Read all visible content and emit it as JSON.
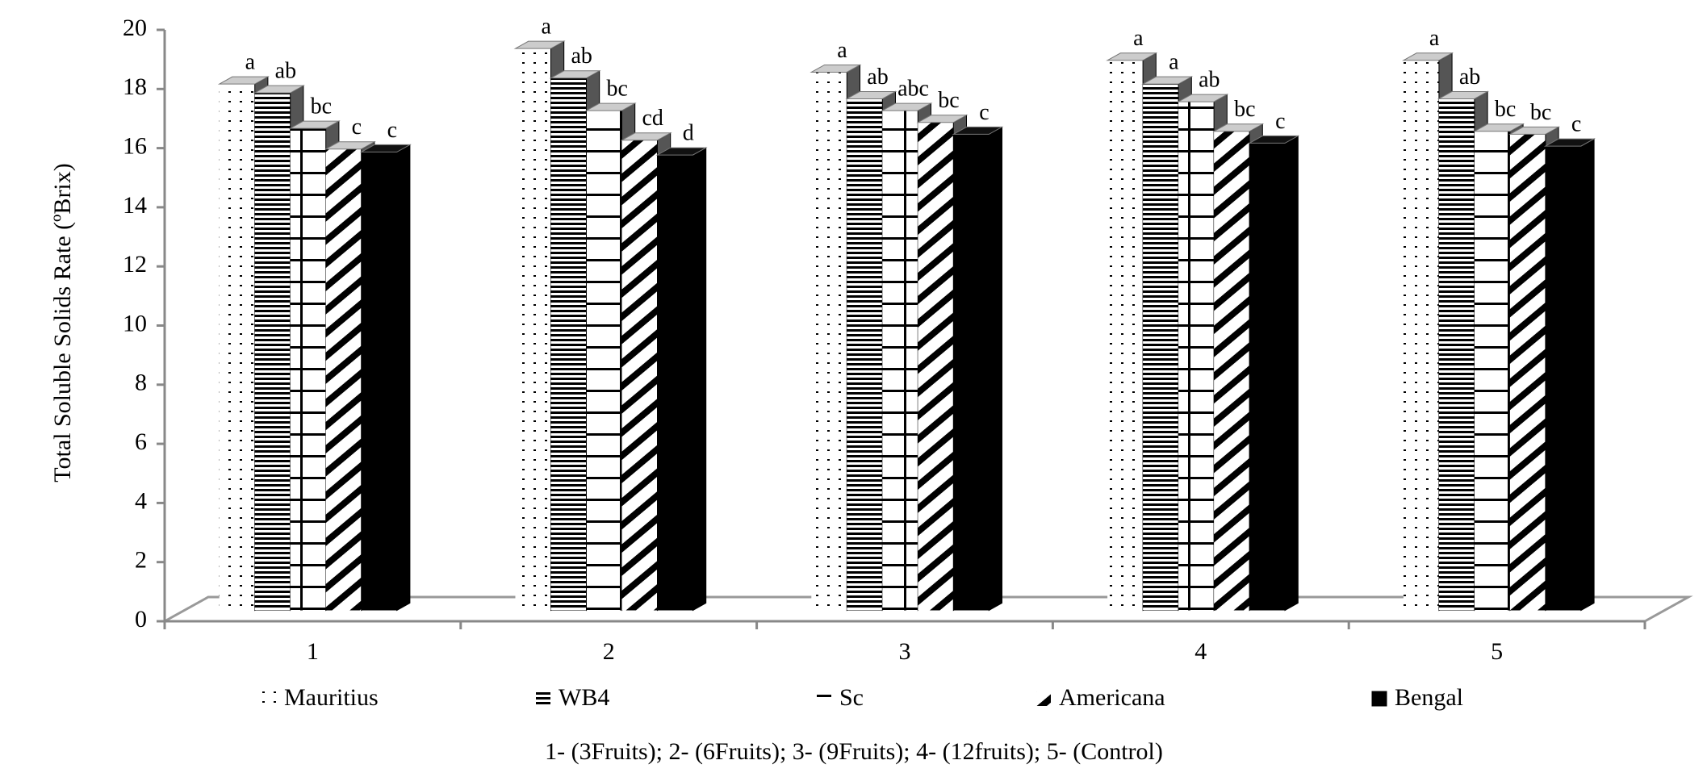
{
  "chart_data": {
    "type": "bar3d",
    "ylabel": "Total Soluble Solids Rate (ºBrix)",
    "caption": "1- (3Fruits); 2- (6Fruits); 3- (9Fruits); 4- (12fruits); 5- (Control)",
    "categories": [
      "1",
      "2",
      "3",
      "4",
      "5"
    ],
    "ylim": [
      0,
      20
    ],
    "yticks": [
      0,
      2,
      4,
      6,
      8,
      10,
      12,
      14,
      16,
      18,
      20
    ],
    "series": [
      {
        "name": "Mauritius",
        "pattern": "dots",
        "color": "#ffffff",
        "values": [
          17.8,
          19.0,
          18.2,
          18.6,
          18.6
        ],
        "letters": [
          "a",
          "a",
          "a",
          "a",
          "a"
        ]
      },
      {
        "name": "WB4",
        "pattern": "hlines",
        "color": "#ffffff",
        "values": [
          17.5,
          18.0,
          17.3,
          17.8,
          17.3
        ],
        "letters": [
          "ab",
          "ab",
          "ab",
          "a",
          "ab"
        ]
      },
      {
        "name": "Sc",
        "pattern": "grid",
        "color": "#ffffff",
        "values": [
          16.3,
          16.9,
          16.9,
          17.2,
          16.2
        ],
        "letters": [
          "bc",
          "bc",
          "abc",
          "ab",
          "bc"
        ]
      },
      {
        "name": "Americana",
        "pattern": "diagonal",
        "color": "#ffffff",
        "values": [
          15.6,
          15.9,
          16.5,
          16.2,
          16.1
        ],
        "letters": [
          "c",
          "cd",
          "bc",
          "bc",
          "bc"
        ]
      },
      {
        "name": "Bengal",
        "pattern": "solid",
        "color": "#000000",
        "values": [
          15.5,
          15.4,
          16.1,
          15.8,
          15.7
        ],
        "letters": [
          "c",
          "d",
          "c",
          "c",
          "c"
        ]
      }
    ]
  }
}
